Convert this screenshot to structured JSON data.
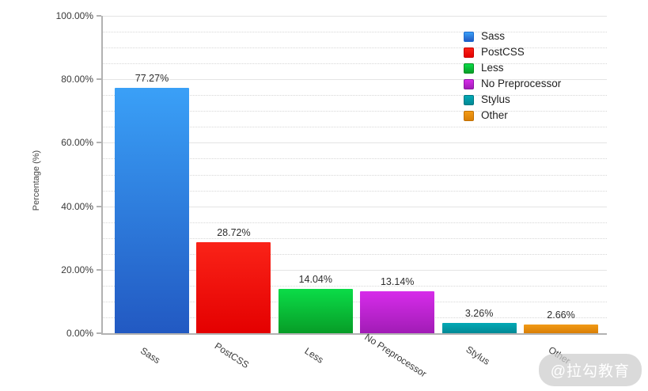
{
  "chart_data": {
    "type": "bar",
    "title": "",
    "xlabel": "",
    "ylabel": "Percentage (%)",
    "categories": [
      "Sass",
      "PostCSS",
      "Less",
      "No Preprocessor",
      "Stylus",
      "Other"
    ],
    "values": [
      77.27,
      28.72,
      14.04,
      13.14,
      3.26,
      2.66
    ],
    "value_labels": [
      "77.27%",
      "28.72%",
      "14.04%",
      "13.14%",
      "3.26%",
      "2.66%"
    ],
    "ylim": [
      0,
      100
    ],
    "y_tick_values": [
      0,
      20,
      40,
      60,
      80,
      100
    ],
    "y_tick_labels": [
      "0.00%",
      "20.00%",
      "40.00%",
      "60.00%",
      "80.00%",
      "100.00%"
    ],
    "minor_grid_step": 5,
    "grid": "major solid horizontal + minor dotted horizontal",
    "legend_position": "top-right",
    "legend": [
      "Sass",
      "PostCSS",
      "Less",
      "No Preprocessor",
      "Stylus",
      "Other"
    ],
    "series_colors": [
      {
        "name": "Sass",
        "top": "#3aa0f7",
        "bottom": "#2259c2",
        "edge": "#1d6cd0"
      },
      {
        "name": "PostCSS",
        "top": "#fa2318",
        "bottom": "#e40000",
        "edge": "#c90000"
      },
      {
        "name": "Less",
        "top": "#0bdc48",
        "bottom": "#079d27",
        "edge": "#069021"
      },
      {
        "name": "No Preprocessor",
        "top": "#d72cea",
        "bottom": "#a11cb6",
        "edge": "#8e17a5"
      },
      {
        "name": "Stylus",
        "top": "#03a9b5",
        "bottom": "#018995",
        "edge": "#017781"
      },
      {
        "name": "Other",
        "top": "#f29a16",
        "bottom": "#d97f06",
        "edge": "#c27104"
      }
    ]
  },
  "watermark": {
    "text": "@拉勾教育"
  }
}
